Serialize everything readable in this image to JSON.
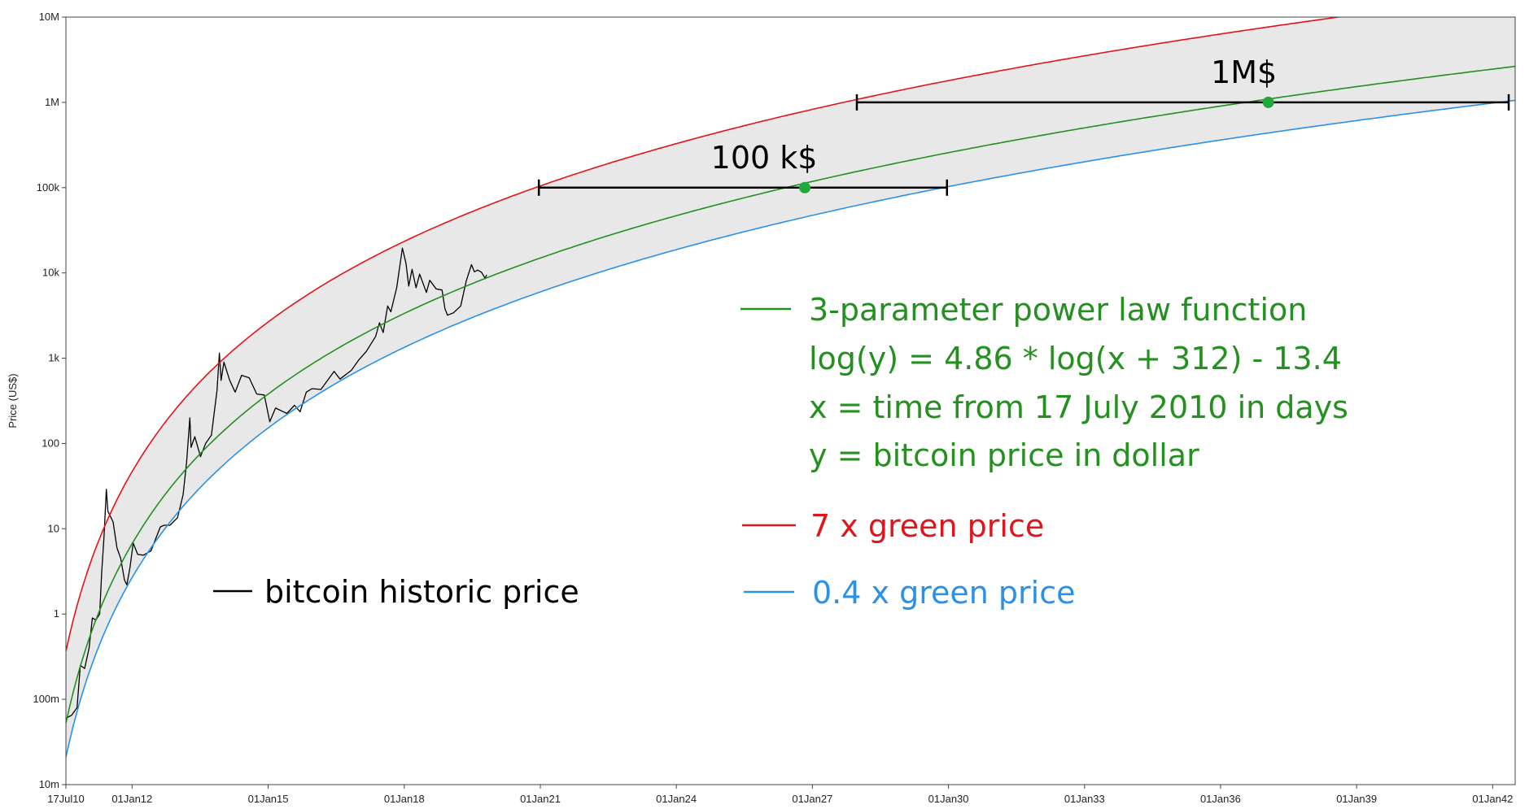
{
  "chart_data": {
    "type": "line",
    "title": "",
    "xlabel": "",
    "ylabel": "Price (US$)",
    "y_scale": "log",
    "ylim": [
      0.01,
      10000000
    ],
    "xlim": [
      "2010-07-17",
      "2042-07-01"
    ],
    "grid": false,
    "y_ticks": [
      {
        "value": 0.01,
        "label": "10m"
      },
      {
        "value": 0.1,
        "label": "100m"
      },
      {
        "value": 1,
        "label": "1"
      },
      {
        "value": 10,
        "label": "10"
      },
      {
        "value": 100,
        "label": "100"
      },
      {
        "value": 1000,
        "label": "1k"
      },
      {
        "value": 10000,
        "label": "10k"
      },
      {
        "value": 100000,
        "label": "100k"
      },
      {
        "value": 1000000,
        "label": "1M"
      },
      {
        "value": 10000000,
        "label": "10M"
      }
    ],
    "x_ticks": [
      {
        "date": "2010-07-17",
        "label": "17Jul10"
      },
      {
        "date": "2012-01-01",
        "label": "01Jan12"
      },
      {
        "date": "2015-01-01",
        "label": "01Jan15"
      },
      {
        "date": "2018-01-01",
        "label": "01Jan18"
      },
      {
        "date": "2021-01-01",
        "label": "01Jan21"
      },
      {
        "date": "2024-01-01",
        "label": "01Jan24"
      },
      {
        "date": "2027-01-01",
        "label": "01Jan27"
      },
      {
        "date": "2030-01-01",
        "label": "01Jan30"
      },
      {
        "date": "2033-01-01",
        "label": "01Jan33"
      },
      {
        "date": "2036-01-01",
        "label": "01Jan36"
      },
      {
        "date": "2039-01-01",
        "label": "01Jan39"
      },
      {
        "date": "2042-01-01",
        "label": "01Jan42"
      }
    ],
    "model": {
      "a": 4.86,
      "b": 312,
      "c": -13.4
    },
    "series": [
      {
        "name": "bitcoin historic price",
        "color": "#000000",
        "kind": "data",
        "points": [
          [
            "2010-07-17",
            0.06
          ],
          [
            "2010-09-01",
            0.065
          ],
          [
            "2010-10-15",
            0.08
          ],
          [
            "2010-11-10",
            0.25
          ],
          [
            "2010-12-15",
            0.23
          ],
          [
            "2011-01-20",
            0.4
          ],
          [
            "2011-02-15",
            0.9
          ],
          [
            "2011-03-15",
            0.85
          ],
          [
            "2011-04-15",
            1.0
          ],
          [
            "2011-05-01",
            3.0
          ],
          [
            "2011-05-20",
            8.0
          ],
          [
            "2011-06-08",
            29.0
          ],
          [
            "2011-06-20",
            16.0
          ],
          [
            "2011-07-10",
            14.0
          ],
          [
            "2011-08-01",
            12.0
          ],
          [
            "2011-09-01",
            6.0
          ],
          [
            "2011-10-01",
            4.5
          ],
          [
            "2011-11-01",
            2.5
          ],
          [
            "2011-11-20",
            2.2
          ],
          [
            "2011-12-15",
            3.5
          ],
          [
            "2012-01-10",
            6.8
          ],
          [
            "2012-02-15",
            5.0
          ],
          [
            "2012-04-01",
            4.9
          ],
          [
            "2012-06-01",
            5.5
          ],
          [
            "2012-08-15",
            10.5
          ],
          [
            "2012-09-15",
            11.0
          ],
          [
            "2012-11-01",
            11.0
          ],
          [
            "2013-01-01",
            13.5
          ],
          [
            "2013-02-15",
            25.0
          ],
          [
            "2013-03-15",
            60.0
          ],
          [
            "2013-04-10",
            200.0
          ],
          [
            "2013-04-20",
            90.0
          ],
          [
            "2013-05-20",
            120.0
          ],
          [
            "2013-07-05",
            70.0
          ],
          [
            "2013-08-15",
            100.0
          ],
          [
            "2013-10-01",
            125.0
          ],
          [
            "2013-11-15",
            420.0
          ],
          [
            "2013-12-04",
            1150.0
          ],
          [
            "2013-12-18",
            550.0
          ],
          [
            "2014-01-10",
            900.0
          ],
          [
            "2014-02-25",
            550.0
          ],
          [
            "2014-04-10",
            400.0
          ],
          [
            "2014-06-01",
            630.0
          ],
          [
            "2014-08-01",
            590.0
          ],
          [
            "2014-10-01",
            380.0
          ],
          [
            "2014-12-01",
            370.0
          ],
          [
            "2015-01-14",
            180.0
          ],
          [
            "2015-03-01",
            260.0
          ],
          [
            "2015-06-01",
            225.0
          ],
          [
            "2015-08-01",
            280.0
          ],
          [
            "2015-09-15",
            235.0
          ],
          [
            "2015-11-04",
            400.0
          ],
          [
            "2015-12-20",
            440.0
          ],
          [
            "2016-03-01",
            430.0
          ],
          [
            "2016-06-15",
            700.0
          ],
          [
            "2016-08-01",
            570.0
          ],
          [
            "2016-11-01",
            720.0
          ],
          [
            "2017-01-01",
            960.0
          ],
          [
            "2017-03-01",
            1200.0
          ],
          [
            "2017-05-15",
            1800.0
          ],
          [
            "2017-06-15",
            2600.0
          ],
          [
            "2017-07-15",
            2000.0
          ],
          [
            "2017-08-20",
            4100.0
          ],
          [
            "2017-09-15",
            3500.0
          ],
          [
            "2017-11-01",
            6700.0
          ],
          [
            "2017-12-17",
            19500.0
          ],
          [
            "2018-01-15",
            13000.0
          ],
          [
            "2018-02-06",
            7000.0
          ],
          [
            "2018-03-05",
            11000.0
          ],
          [
            "2018-04-06",
            6700.0
          ],
          [
            "2018-05-05",
            9700.0
          ],
          [
            "2018-06-28",
            5900.0
          ],
          [
            "2018-07-25",
            8200.0
          ],
          [
            "2018-09-15",
            6500.0
          ],
          [
            "2018-11-01",
            6300.0
          ],
          [
            "2018-11-25",
            3800.0
          ],
          [
            "2018-12-15",
            3200.0
          ],
          [
            "2019-02-01",
            3400.0
          ],
          [
            "2019-04-01",
            4100.0
          ],
          [
            "2019-05-15",
            8000.0
          ],
          [
            "2019-06-26",
            12500.0
          ],
          [
            "2019-07-20",
            10300.0
          ],
          [
            "2019-08-15",
            10800.0
          ],
          [
            "2019-09-15",
            10200.0
          ],
          [
            "2019-10-15",
            8600.0
          ],
          [
            "2019-10-26",
            9500.0
          ]
        ]
      },
      {
        "name": "7 x green price",
        "color": "#e0151b",
        "kind": "model",
        "factor": 7
      },
      {
        "name": "3-parameter power law function",
        "color": "#24901f",
        "kind": "model",
        "factor": 1
      },
      {
        "name": "0.4 x green price",
        "color": "#2a91e8",
        "kind": "model",
        "factor": 0.4
      }
    ],
    "band": {
      "upper_factor": 7,
      "lower_factor": 0.4,
      "color": "#e8e8e8"
    },
    "legend": {
      "position": "right",
      "formula_title": "3-parameter power law function",
      "formula_lines": [
        "log(y) = 4.86 * log(x + 312) - 13.4",
        "x = time from 17 July 2010  in days",
        "y = bitcoin price in dollar"
      ],
      "red_label": "7 x green price",
      "blue_label": "0.4 x green price",
      "black_label": "bitcoin historic price"
    },
    "annotations": [
      {
        "label": "100 k$",
        "level": 100000,
        "from": "2020-12-20",
        "center": "2026-11-01",
        "to": "2029-12-20",
        "color": "#000000",
        "marker_color": "#1fa83c"
      },
      {
        "label": "1M$",
        "level": 1000000,
        "from": "2027-12-25",
        "center": "2037-01-20",
        "to": "2042-05-10",
        "color": "#000000",
        "marker_color": "#1fa83c"
      }
    ]
  }
}
